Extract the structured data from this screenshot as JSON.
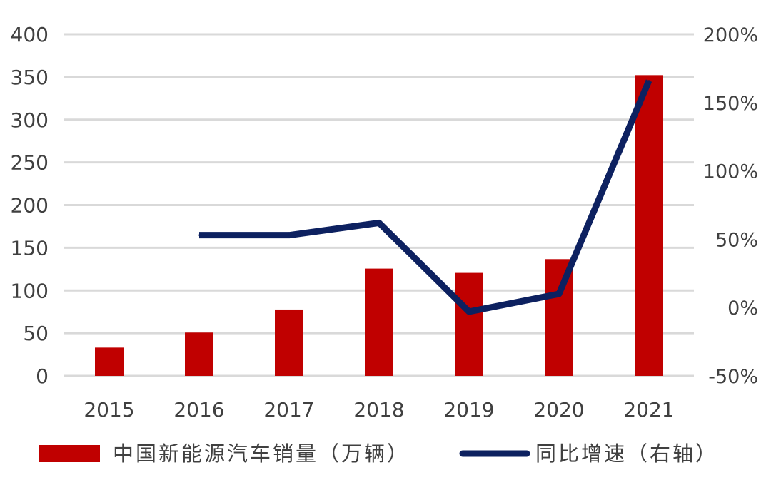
{
  "chart_data": {
    "type": "bar",
    "categories": [
      "2015",
      "2016",
      "2017",
      "2018",
      "2019",
      "2020",
      "2021"
    ],
    "series": [
      {
        "name": "中国新能源汽车销量（万辆）",
        "type": "bar",
        "axis": "left",
        "color": "#C00000",
        "values": [
          33.1,
          50.7,
          77.7,
          125.6,
          120.6,
          136.7,
          352.1
        ]
      },
      {
        "name": "同比增速（右轴）",
        "type": "line",
        "axis": "right",
        "color": "#0D2160",
        "values": [
          null,
          53,
          53,
          62,
          -3,
          10,
          166
        ]
      }
    ],
    "y_left": {
      "min": 0,
      "max": 400,
      "step": 50,
      "ticks": [
        "0",
        "50",
        "100",
        "150",
        "200",
        "250",
        "300",
        "350",
        "400"
      ]
    },
    "y_right": {
      "min": -50,
      "max": 200,
      "step": 50,
      "ticks": [
        "-50%",
        "0%",
        "50%",
        "100%",
        "150%",
        "200%"
      ]
    },
    "grid": true,
    "legend_position": "bottom"
  }
}
